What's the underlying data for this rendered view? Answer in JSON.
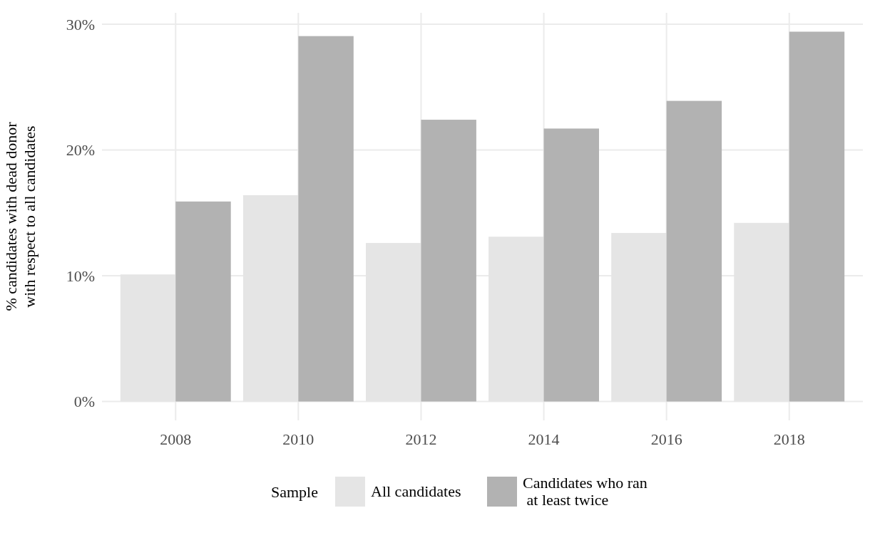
{
  "chart_data": {
    "type": "bar",
    "categories": [
      "2008",
      "2010",
      "2012",
      "2014",
      "2016",
      "2018"
    ],
    "series": [
      {
        "name": "All candidates",
        "color": "#e5e5e5",
        "values": [
          10.1,
          16.4,
          12.6,
          13.1,
          13.4,
          14.2
        ]
      },
      {
        "name": "Candidates who ran\n at least twice",
        "color": "#b2b2b2",
        "values": [
          15.9,
          29.05,
          22.4,
          21.7,
          23.9,
          29.4
        ]
      }
    ],
    "ylabel": "% candidates with dead donor\nwith respect to all candidates",
    "legend_title": "Sample",
    "ylim": [
      -1.5,
      30.9
    ],
    "yticks": [
      {
        "value": 0,
        "label": "0%"
      },
      {
        "value": 10,
        "label": "10%"
      },
      {
        "value": 20,
        "label": "20%"
      },
      {
        "value": 30,
        "label": "30%"
      }
    ],
    "grid": true,
    "legend": "bottom"
  }
}
